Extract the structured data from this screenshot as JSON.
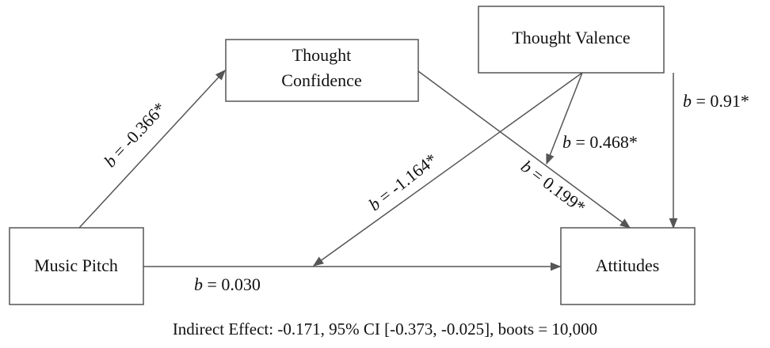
{
  "nodes": [
    {
      "lines": [
        "Music Pitch"
      ]
    },
    {
      "lines": [
        "Thought",
        "Confidence"
      ]
    },
    {
      "lines": [
        "Thought Valence"
      ]
    },
    {
      "lines": [
        "Attitudes"
      ]
    }
  ],
  "edges": [
    {
      "symbol": "b",
      "text": "= -0.366*"
    },
    {
      "symbol": "b",
      "text": "= 0.199*"
    },
    {
      "symbol": "b",
      "text": "= 0.468*"
    },
    {
      "symbol": "b",
      "text": "= -1.164*"
    },
    {
      "symbol": "b",
      "text": "= 0.91*"
    },
    {
      "symbol": "b",
      "text": "= 0.030"
    }
  ],
  "footer": "Indirect Effect: -0.171, 95% CI [-0.373, -0.025], boots = 10,000"
}
